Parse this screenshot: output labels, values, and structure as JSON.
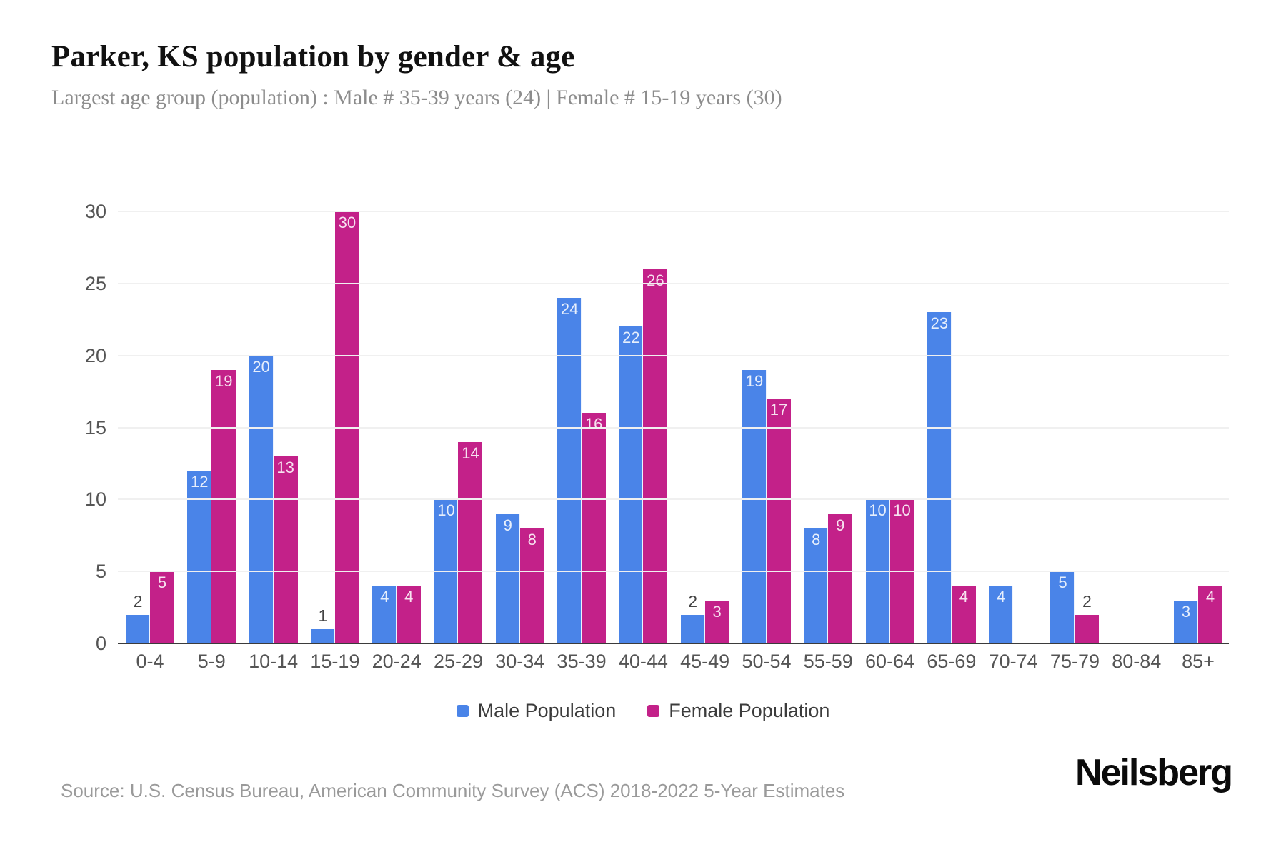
{
  "header": {
    "title": "Parker, KS population by gender & age",
    "subtitle": "Largest age group (population) : Male # 35-39 years (24) | Female # 15-19 years (30)"
  },
  "chart_data": {
    "type": "bar",
    "title": "Parker, KS population by gender & age",
    "categories": [
      "0-4",
      "5-9",
      "10-14",
      "15-19",
      "20-24",
      "25-29",
      "30-34",
      "35-39",
      "40-44",
      "45-49",
      "50-54",
      "55-59",
      "60-64",
      "65-69",
      "70-74",
      "75-79",
      "80-84",
      "85+"
    ],
    "series": [
      {
        "name": "Male Population",
        "color": "#4a84e8",
        "values": [
          2,
          12,
          20,
          1,
          4,
          10,
          9,
          24,
          22,
          2,
          19,
          8,
          10,
          23,
          4,
          5,
          0,
          3
        ]
      },
      {
        "name": "Female Population",
        "color": "#c32189",
        "values": [
          5,
          19,
          13,
          30,
          4,
          14,
          8,
          16,
          26,
          3,
          17,
          9,
          10,
          4,
          0,
          2,
          0,
          4
        ]
      }
    ],
    "xlabel": "",
    "ylabel": "",
    "ylim": [
      0,
      30
    ],
    "yticks": [
      0,
      5,
      10,
      15,
      20,
      25,
      30
    ],
    "grid": true,
    "legend_position": "bottom",
    "label_rule": "values 3 and above shown in white inside bar top; 2 and below shown in dark gray above bar; zero values have no bar"
  },
  "colors": {
    "male": "#4a84e8",
    "female": "#c32189",
    "gridline": "#f0f0f0",
    "axis_line": "#3b3b3b",
    "tick_text": "#555555",
    "subtitle_text": "#8c8c8c",
    "source_text": "#9a9a9a"
  },
  "footer": {
    "source": "Source: U.S. Census Bureau, American Community Survey (ACS) 2018-2022 5-Year Estimates",
    "brand": "Neilsberg"
  }
}
